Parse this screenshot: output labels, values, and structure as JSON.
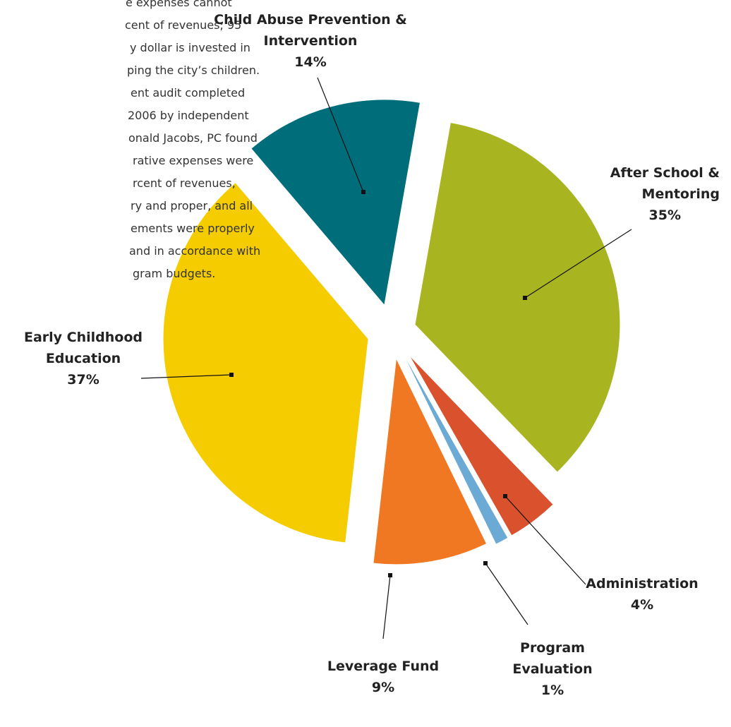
{
  "chart_data": {
    "type": "pie",
    "categories": [
      "After School & Mentoring",
      "Administration",
      "Program Evaluation",
      "Leverage Fund",
      "Early Childhood Education",
      "Child Abuse Prevention & Intervention"
    ],
    "values": [
      35,
      4,
      1,
      9,
      37,
      14
    ],
    "value_labels": [
      "35%",
      "4%",
      "1%",
      "9%",
      "37%",
      "14%"
    ],
    "colors": [
      "#a9b520",
      "#d9512d",
      "#6aaad4",
      "#f07822",
      "#f5cc00",
      "#006e7a"
    ]
  },
  "side_text": [
    "e expenses cannot",
    "cent of revenues; 95",
    "y dollar is invested in",
    "ping the city’s children.",
    "ent audit completed",
    "2006 by independent",
    "onald Jacobs, PC found",
    "rative expenses were",
    "rcent of revenues,",
    "ry and proper, and all",
    "ements were properly",
    "and in accordance with",
    "gram budgets."
  ]
}
